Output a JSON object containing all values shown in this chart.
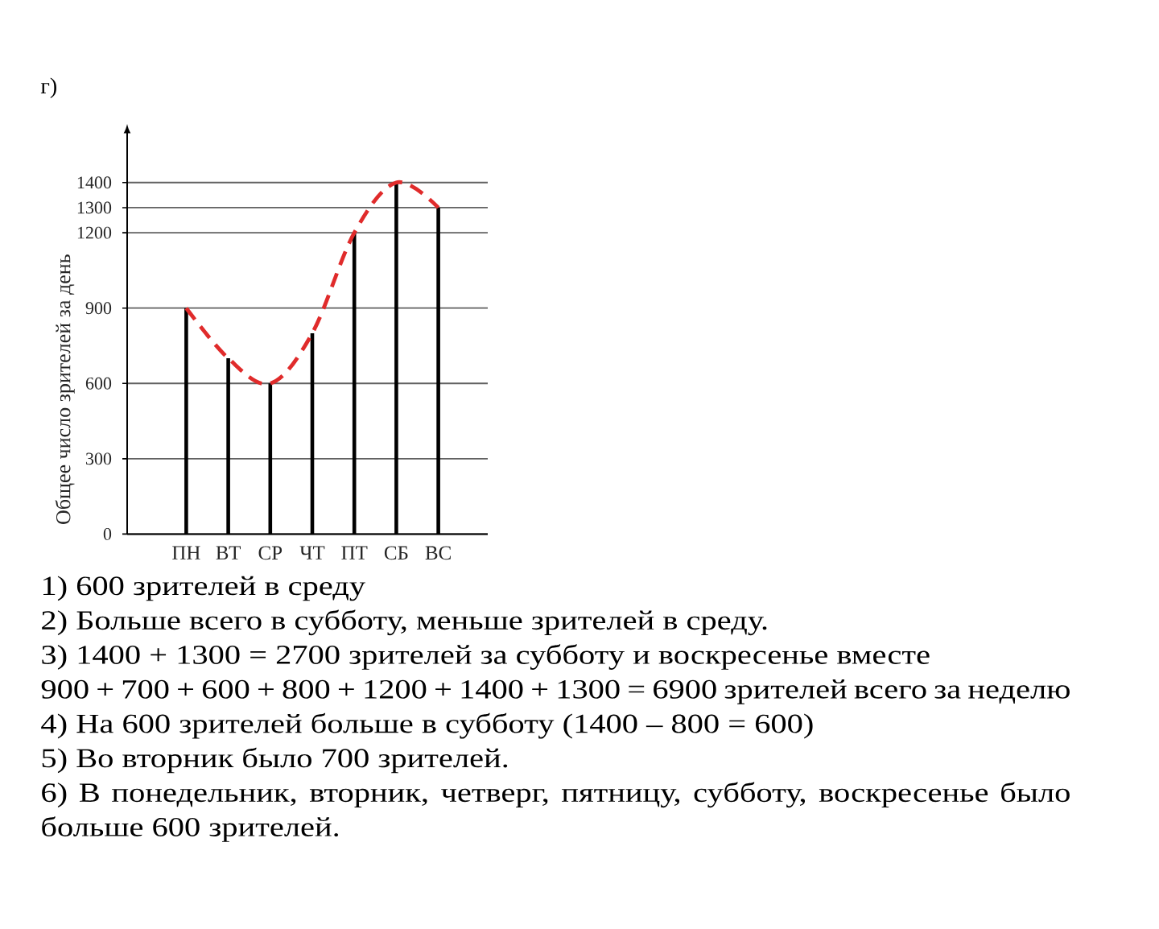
{
  "chart_data": {
    "type": "bar",
    "title": "г)",
    "ylabel": "Общее число зрителей за день",
    "categories": [
      "ПН",
      "ВТ",
      "СР",
      "ЧТ",
      "ПТ",
      "СБ",
      "ВС"
    ],
    "series": [
      {
        "color": "#000000",
        "values": [
          900,
          700,
          600,
          800,
          1200,
          1400,
          1300
        ]
      },
      {
        "type": "line",
        "color": "#e02b2b",
        "values": [
          900,
          700,
          600,
          800,
          1200,
          1400,
          1300
        ],
        "line_style": "dashed",
        "marker": "none"
      }
    ],
    "ylim": [
      0,
      1600
    ],
    "yticks": [
      0,
      300,
      600,
      900,
      1200,
      1300,
      1400
    ],
    "grid": "y",
    "annotations": [
      "1) 600 зрителей в среду",
      "2) Больше всего в субботу, меньше зрителей в среду.",
      "3) 1400 + 1300 = 2700 зрителей за субботу и воскресенье вместе",
      "900 + 700 + 600 + 800 + 1200 + 1400 + 1300 = 6900 зрителей всего за неделю",
      "4) На 600 зрителей больше в субботу (1400 – 800 = 600)",
      "5) Во вторник было 700 зрителей.",
      "6) В понедельник, вторник, четверг, пятницу, субботу, воскресенье было больше 600 зрителей."
    ]
  }
}
